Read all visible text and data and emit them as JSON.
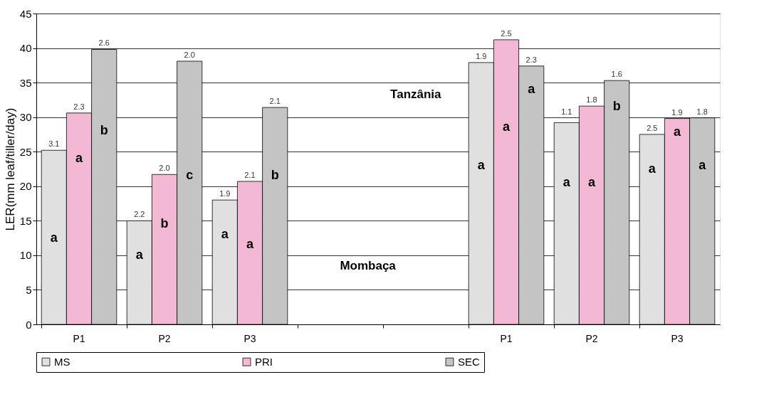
{
  "chart_data": {
    "type": "bar",
    "ylabel": "LER(mm leaf/tiller/day)",
    "categories": [
      "P1",
      "P2",
      "P3",
      null,
      null,
      "P1",
      "P2",
      "P3"
    ],
    "series": [
      {
        "name": "MS",
        "color": "#e0e0e0",
        "values": [
          25.2,
          15.0,
          18.0,
          null,
          null,
          37.9,
          29.2,
          27.5
        ]
      },
      {
        "name": "PRI",
        "color": "#f2b8d4",
        "values": [
          30.6,
          21.7,
          20.7,
          null,
          null,
          41.2,
          31.6,
          29.8
        ]
      },
      {
        "name": "SEC",
        "color": "#c4c4c4",
        "values": [
          39.8,
          38.1,
          31.4,
          null,
          null,
          37.4,
          35.3,
          29.9
        ]
      }
    ],
    "ylim": [
      0,
      45
    ],
    "yticks": [
      0,
      5,
      10,
      15,
      20,
      25,
      30,
      35,
      40,
      45
    ],
    "grid": "y",
    "legend": "bottom",
    "annotations": [
      "Tanzânia",
      "Mombaça",
      "a",
      "a",
      "b",
      "a",
      "b",
      "c",
      "a",
      "a",
      "b",
      "a",
      "a",
      "a",
      "a",
      "a",
      "b",
      "a",
      "a",
      "a",
      "3.1",
      "2.3",
      "2.6",
      "2.2",
      "2.0",
      "2.0",
      "1.9",
      "2.1",
      "2.1",
      "1.9",
      "2.5",
      "2.3",
      "1.1",
      "1.8",
      "1.6",
      "2.5",
      "1.9",
      "1.8"
    ]
  }
}
